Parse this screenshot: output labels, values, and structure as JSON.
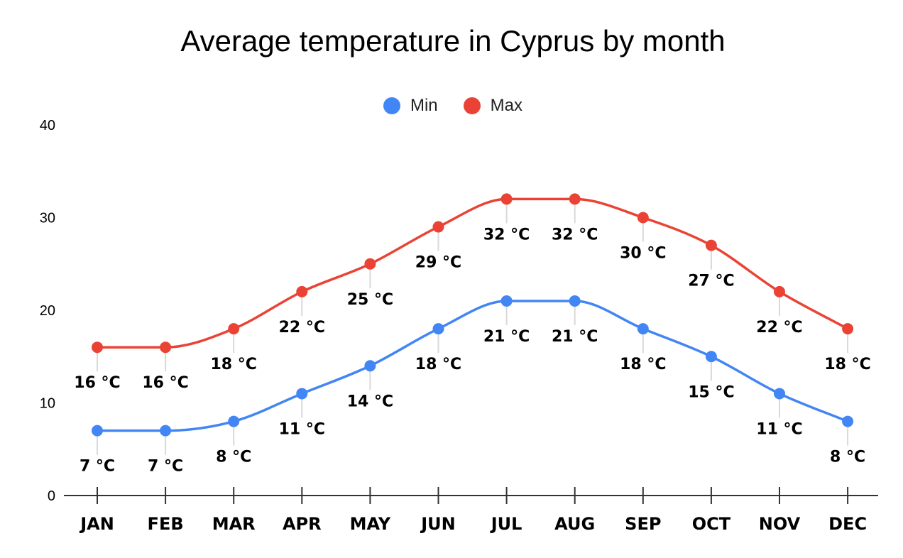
{
  "chart_data": {
    "type": "line",
    "title": "Average temperature in Cyprus by month",
    "categories": [
      "JAN",
      "FEB",
      "MAR",
      "APR",
      "MAY",
      "JUN",
      "JUL",
      "AUG",
      "SEP",
      "OCT",
      "NOV",
      "DEC"
    ],
    "series": [
      {
        "name": "Min",
        "color": "#4285F4",
        "values": [
          7,
          7,
          8,
          11,
          14,
          18,
          21,
          21,
          18,
          15,
          11,
          8
        ],
        "labels": [
          "7 °C",
          "7 °C",
          "8 °C",
          "11 °C",
          "14 °C",
          "18 °C",
          "21 °C",
          "21 °C",
          "18 °C",
          "15 °C",
          "11 °C",
          "8 °C"
        ]
      },
      {
        "name": "Max",
        "color": "#EA4335",
        "values": [
          16,
          16,
          18,
          22,
          25,
          29,
          32,
          32,
          30,
          27,
          22,
          18
        ],
        "labels": [
          "16 °C",
          "16 °C",
          "18 °C",
          "22 °C",
          "25 °C",
          "29 °C",
          "32 °C",
          "32 °C",
          "30 °C",
          "27 °C",
          "22 °C",
          "18 °C"
        ]
      }
    ],
    "yticks": [
      "0",
      "10",
      "20",
      "30",
      "40"
    ],
    "ylim": [
      0,
      40
    ],
    "grid": false,
    "legend_position": "top-center"
  }
}
